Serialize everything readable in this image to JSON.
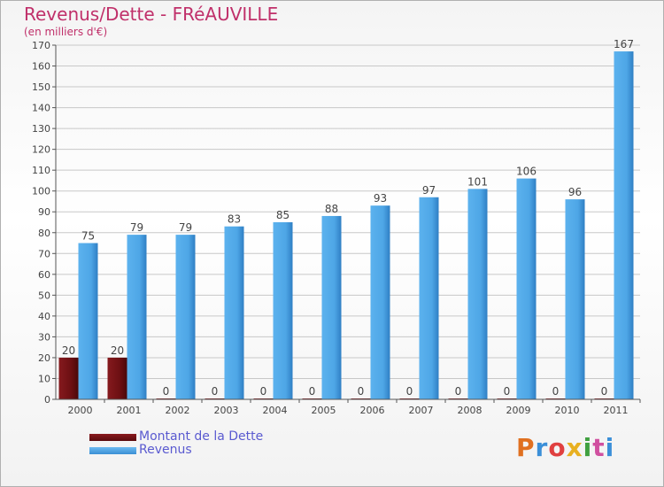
{
  "chart_data": {
    "type": "bar",
    "title": "Revenus/Dette - FRéAUVILLE",
    "subtitle": "(en milliers d'€)",
    "categories": [
      "2000",
      "2001",
      "2002",
      "2003",
      "2004",
      "2005",
      "2006",
      "2007",
      "2008",
      "2009",
      "2010",
      "2011"
    ],
    "series": [
      {
        "name": "Montant de la Dette",
        "color": "#6b0f12",
        "values": [
          20,
          20,
          0,
          0,
          0,
          0,
          0,
          0,
          0,
          0,
          0,
          0
        ]
      },
      {
        "name": "Revenus",
        "color": "#4ea6e6",
        "values": [
          75,
          79,
          79,
          83,
          85,
          88,
          93,
          97,
          101,
          106,
          96,
          167
        ]
      }
    ],
    "ylim": [
      0,
      170
    ],
    "yticks": [
      0,
      10,
      20,
      30,
      40,
      50,
      60,
      70,
      80,
      90,
      100,
      110,
      120,
      130,
      140,
      150,
      160,
      170
    ],
    "legend_position": "bottom-left"
  },
  "logo": {
    "letters": [
      "P",
      "r",
      "o",
      "x",
      "i",
      "t",
      "i"
    ],
    "colors": [
      "#e07020",
      "#3b8fd8",
      "#e04040",
      "#e8b020",
      "#40a040",
      "#d050a0",
      "#3b8fd8"
    ]
  }
}
